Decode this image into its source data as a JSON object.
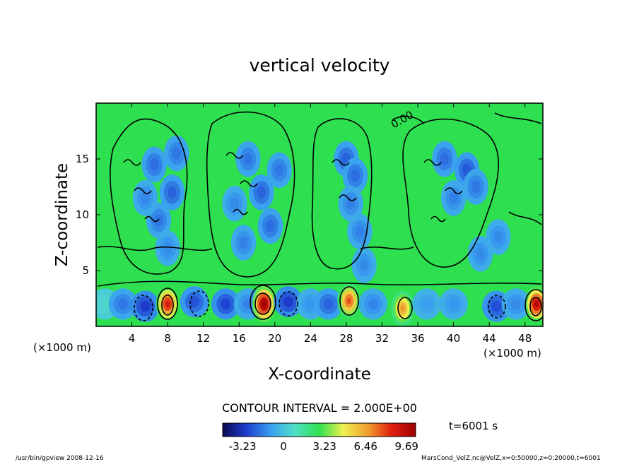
{
  "chart_data": {
    "type": "heatmap",
    "title": "vertical velocity",
    "xlabel": "X-coordinate",
    "ylabel": "Z-coordinate",
    "x_unit": "(×1000 m)",
    "y_unit": "(×1000 m)",
    "xlim": [
      0,
      50
    ],
    "ylim": [
      0,
      20
    ],
    "x_ticks": [
      "4",
      "8",
      "12",
      "16",
      "20",
      "24",
      "28",
      "32",
      "36",
      "40",
      "44",
      "48"
    ],
    "y_ticks": [
      "5",
      "10",
      "15"
    ],
    "contour_interval": "CONTOUR INTERVAL = 2.000E+00",
    "contour_label": "0.00",
    "colorbar": {
      "range": [
        -4.8,
        10.4
      ],
      "tick_labels": [
        "-3.23",
        "0",
        "3.23",
        "6.46",
        "9.69"
      ],
      "colors": [
        "#0a0a50",
        "#1f3fd0",
        "#3aa0f0",
        "#50e0c8",
        "#2ee050",
        "#f0f050",
        "#f0a030",
        "#e02010",
        "#a00000"
      ]
    },
    "time_label": "t=6001 s",
    "cells": [
      {
        "x": 1.0,
        "z": 2.0,
        "w": 0.6
      },
      {
        "x": 3.0,
        "z": 2.0,
        "w": -1.8
      },
      {
        "x": 5.5,
        "z": 1.8,
        "w": -3.0
      },
      {
        "x": 8.0,
        "z": 2.0,
        "w": 8.0
      },
      {
        "x": 11.0,
        "z": 2.2,
        "w": -2.5
      },
      {
        "x": 14.5,
        "z": 2.0,
        "w": -2.8
      },
      {
        "x": 17.0,
        "z": 2.0,
        "w": -1.5
      },
      {
        "x": 18.8,
        "z": 2.0,
        "w": 9.6
      },
      {
        "x": 21.5,
        "z": 2.2,
        "w": -3.0
      },
      {
        "x": 24.0,
        "z": 2.0,
        "w": -1.2
      },
      {
        "x": 26.0,
        "z": 2.0,
        "w": -2.2
      },
      {
        "x": 28.3,
        "z": 2.3,
        "w": 7.0
      },
      {
        "x": 31.0,
        "z": 2.0,
        "w": -1.5
      },
      {
        "x": 34.3,
        "z": 1.6,
        "w": 6.0
      },
      {
        "x": 37.0,
        "z": 2.0,
        "w": -1.0
      },
      {
        "x": 40.0,
        "z": 2.0,
        "w": -1.2
      },
      {
        "x": 44.8,
        "z": 1.8,
        "w": -2.6
      },
      {
        "x": 47.0,
        "z": 2.0,
        "w": -1.4
      },
      {
        "x": 49.3,
        "z": 2.0,
        "w": 8.8
      },
      {
        "x": 6.5,
        "z": 14.5,
        "w": -2.0
      },
      {
        "x": 8.5,
        "z": 12.0,
        "w": -2.2
      },
      {
        "x": 7.0,
        "z": 9.5,
        "w": -1.8
      },
      {
        "x": 5.5,
        "z": 11.5,
        "w": -1.5
      },
      {
        "x": 9.0,
        "z": 15.5,
        "w": -1.8
      },
      {
        "x": 8.0,
        "z": 7.0,
        "w": -1.4
      },
      {
        "x": 17.0,
        "z": 15.0,
        "w": -1.8
      },
      {
        "x": 18.5,
        "z": 12.0,
        "w": -2.2
      },
      {
        "x": 19.5,
        "z": 9.0,
        "w": -2.0
      },
      {
        "x": 16.5,
        "z": 7.5,
        "w": -1.6
      },
      {
        "x": 20.5,
        "z": 14.0,
        "w": -1.8
      },
      {
        "x": 15.5,
        "z": 11.0,
        "w": -1.4
      },
      {
        "x": 28.0,
        "z": 15.0,
        "w": -2.2
      },
      {
        "x": 29.0,
        "z": 13.5,
        "w": -2.0
      },
      {
        "x": 28.5,
        "z": 11.0,
        "w": -1.6
      },
      {
        "x": 29.5,
        "z": 8.5,
        "w": -1.6
      },
      {
        "x": 30.0,
        "z": 5.5,
        "w": -1.4
      },
      {
        "x": 39.0,
        "z": 15.0,
        "w": -2.0
      },
      {
        "x": 41.5,
        "z": 14.0,
        "w": -2.4
      },
      {
        "x": 42.5,
        "z": 12.5,
        "w": -1.8
      },
      {
        "x": 40.0,
        "z": 11.5,
        "w": -1.6
      },
      {
        "x": 45.0,
        "z": 8.0,
        "w": -1.4
      },
      {
        "x": 43.0,
        "z": 6.5,
        "w": -1.4
      }
    ]
  },
  "footer": {
    "left": "/usr/bin/gpview   2008-12-16",
    "right": "MarsCond_VelZ.nc@VelZ,x=0:50000,z=0:20000,t=6001"
  }
}
